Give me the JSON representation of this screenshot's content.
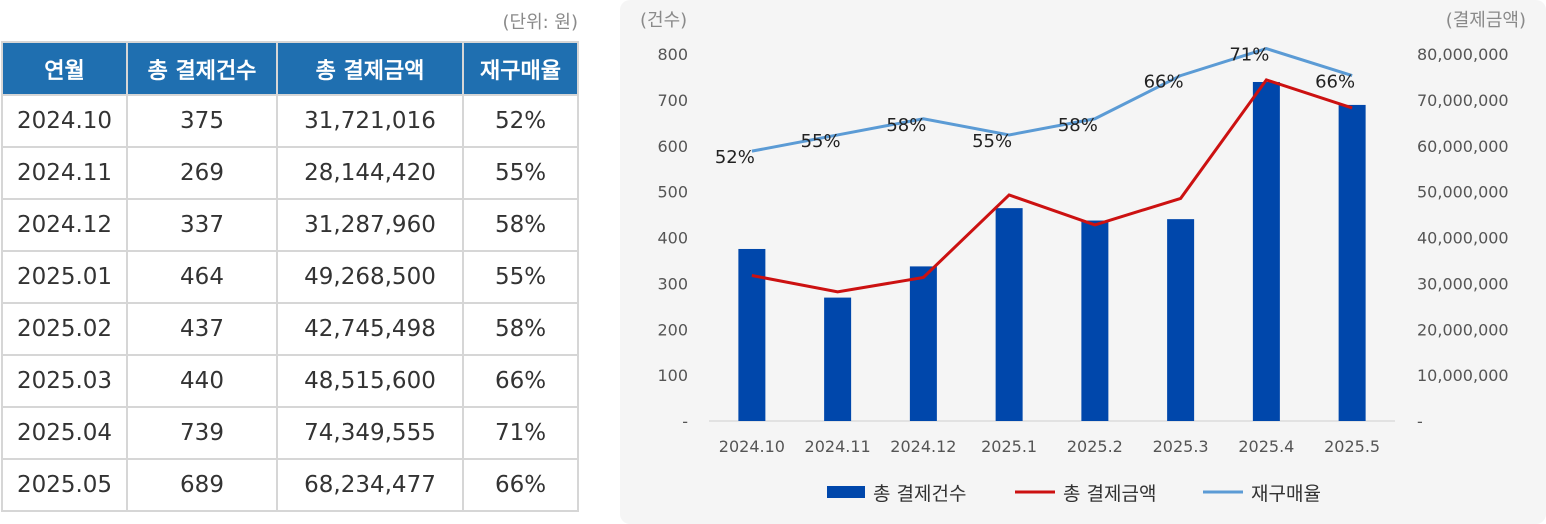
{
  "table": {
    "unit_note": "(단위: 원)",
    "headers": [
      "연월",
      "총 결제건수",
      "총 결제금액",
      "재구매율"
    ],
    "rows": [
      [
        "2024.10",
        "375",
        "31,721,016",
        "52%"
      ],
      [
        "2024.11",
        "269",
        "28,144,420",
        "55%"
      ],
      [
        "2024.12",
        "337",
        "31,287,960",
        "58%"
      ],
      [
        "2025.01",
        "464",
        "49,268,500",
        "55%"
      ],
      [
        "2025.02",
        "437",
        "42,745,498",
        "58%"
      ],
      [
        "2025.03",
        "440",
        "48,515,600",
        "66%"
      ],
      [
        "2025.04",
        "739",
        "74,349,555",
        "71%"
      ],
      [
        "2025.05",
        "689",
        "68,234,477",
        "66%"
      ]
    ]
  },
  "chart_data": {
    "type": "bar",
    "categories": [
      "2024.10",
      "2024.11",
      "2024.12",
      "2025.1",
      "2025.2",
      "2025.3",
      "2025.4",
      "2025.5"
    ],
    "left_axis_label": "(건수)",
    "right_axis_label": "(결제금액)",
    "left_ticks": [
      "-",
      "100",
      "200",
      "300",
      "400",
      "500",
      "600",
      "700",
      "800"
    ],
    "right_ticks": [
      "-",
      "10,000,000",
      "20,000,000",
      "30,000,000",
      "40,000,000",
      "50,000,000",
      "60,000,000",
      "70,000,000",
      "80,000,000"
    ],
    "ylim_left": [
      0,
      800
    ],
    "ylim_right": [
      0,
      80000000
    ],
    "series": [
      {
        "name": "총 결제건수",
        "type": "bar",
        "axis": "left",
        "color": "#0047ab",
        "values": [
          375,
          269,
          337,
          464,
          437,
          440,
          739,
          689
        ]
      },
      {
        "name": "총 결제금액",
        "type": "line",
        "axis": "right",
        "color": "#cc1111",
        "values": [
          31721016,
          28144420,
          31287960,
          49268500,
          42745498,
          48515600,
          74349555,
          68234477
        ]
      },
      {
        "name": "재구매율",
        "type": "line",
        "axis": "hidden",
        "color": "#5b9bd5",
        "values": [
          52,
          55,
          58,
          55,
          58,
          66,
          71,
          66
        ],
        "labels": [
          "52%",
          "55%",
          "58%",
          "55%",
          "58%",
          "66%",
          "71%",
          "66%"
        ]
      }
    ],
    "legend": "bottom"
  }
}
